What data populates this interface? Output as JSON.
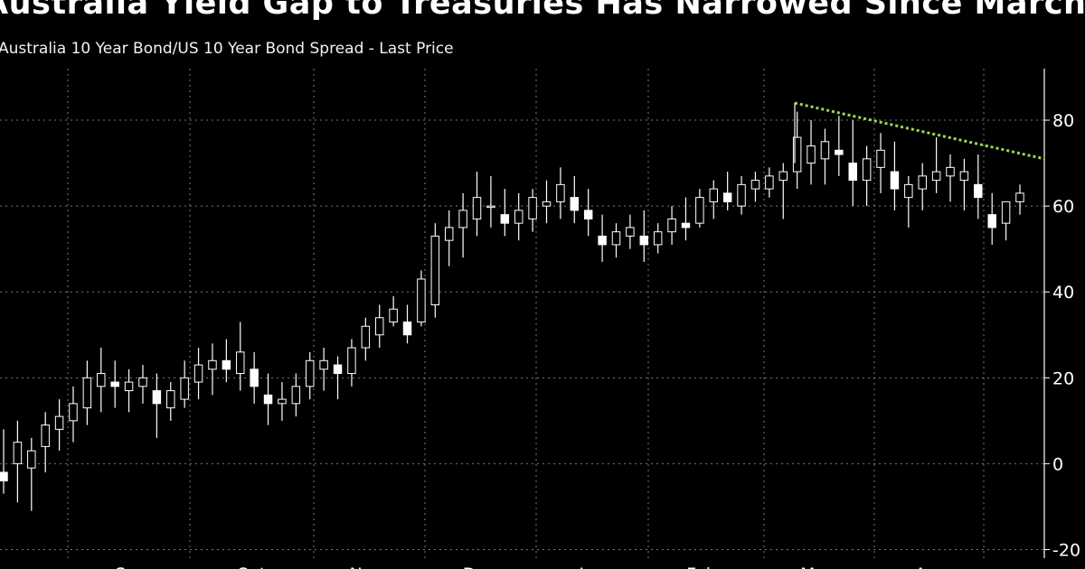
{
  "header": {
    "title": "Australia Yield Gap to Treasuries Has Narrowed Since March",
    "subtitle": "Australia 10 Year Bond/US 10 Year Bond Spread - Last Price"
  },
  "colors": {
    "background": "#000000",
    "candles": "#ffffff",
    "grid": "#7a7a7a",
    "trendline": "#9bd84f"
  },
  "chart_data": {
    "type": "candlestick",
    "title": "Australia Yield Gap to Treasuries Has Narrowed Since March",
    "subtitle": "Australia 10 Year Bond/US 10 Year Bond Spread - Last Price",
    "x_tick_labels": [
      "Aug",
      "Sep",
      "Oct",
      "Nov",
      "Dec",
      "Jan",
      "Feb",
      "Mar",
      "Apr"
    ],
    "y_ticks": [
      -20,
      0,
      20,
      40,
      60,
      80
    ],
    "ylim": [
      -22,
      92
    ],
    "y_axis_position": "right",
    "grid": true,
    "trendline": {
      "style": "dotted",
      "start": {
        "month": "Mar",
        "value": 84
      },
      "end": {
        "month": "end of Apr",
        "value": 71
      }
    },
    "series": [
      {
        "values": [
          [
            -2,
            8,
            -7,
            -4
          ],
          [
            0,
            10,
            -9,
            5
          ],
          [
            -1,
            6,
            -11,
            3
          ],
          [
            4,
            12,
            -2,
            9
          ],
          [
            8,
            15,
            3,
            11
          ],
          [
            10,
            18,
            5,
            14
          ],
          [
            13,
            24,
            9,
            20
          ],
          [
            18,
            27,
            12,
            21
          ],
          [
            19,
            24,
            13,
            18
          ],
          [
            17,
            22,
            12,
            19
          ],
          [
            18,
            23,
            14,
            20
          ],
          [
            17,
            21,
            6,
            14
          ],
          [
            13,
            19,
            10,
            17
          ],
          [
            15,
            24,
            13,
            20
          ],
          [
            19,
            27,
            15,
            23
          ],
          [
            22,
            28,
            16,
            24
          ],
          [
            24,
            29,
            19,
            22
          ],
          [
            21,
            33,
            17,
            26
          ],
          [
            22,
            26,
            14,
            18
          ],
          [
            16,
            21,
            9,
            14
          ],
          [
            14,
            19,
            10,
            15
          ],
          [
            14,
            21,
            11,
            18
          ],
          [
            18,
            26,
            15,
            24
          ],
          [
            22,
            27,
            17,
            24
          ],
          [
            23,
            25,
            15,
            21
          ],
          [
            21,
            29,
            18,
            27
          ],
          [
            27,
            34,
            24,
            32
          ],
          [
            30,
            37,
            27,
            34
          ],
          [
            33,
            39,
            32,
            36
          ],
          [
            33,
            37,
            28,
            30
          ],
          [
            33,
            45,
            32,
            43
          ],
          [
            37,
            56,
            34,
            53
          ],
          [
            52,
            59,
            46,
            55
          ],
          [
            55,
            63,
            48,
            59
          ],
          [
            57,
            68,
            53,
            62
          ],
          [
            60,
            67,
            55,
            60
          ],
          [
            58,
            64,
            53,
            56
          ],
          [
            56,
            63,
            52,
            59
          ],
          [
            57,
            64,
            54,
            62
          ],
          [
            60,
            66,
            56,
            61
          ],
          [
            61,
            69,
            57,
            65
          ],
          [
            62,
            67,
            56,
            59
          ],
          [
            59,
            64,
            53,
            57
          ],
          [
            53,
            58,
            47,
            51
          ],
          [
            51,
            56,
            48,
            54
          ],
          [
            53,
            58,
            50,
            55
          ],
          [
            53,
            59,
            47,
            51
          ],
          [
            51,
            56,
            49,
            54
          ],
          [
            54,
            60,
            51,
            57
          ],
          [
            56,
            62,
            52,
            55
          ],
          [
            56,
            64,
            55,
            62
          ],
          [
            61,
            66,
            57,
            64
          ],
          [
            63,
            68,
            59,
            61
          ],
          [
            60,
            67,
            58,
            65
          ],
          [
            64,
            68,
            61,
            66
          ],
          [
            64,
            69,
            62,
            67
          ],
          [
            66,
            70,
            57,
            68
          ],
          [
            68,
            82,
            64,
            76
          ],
          [
            70,
            80,
            65,
            74
          ],
          [
            71,
            78,
            65,
            75
          ],
          [
            73,
            81,
            67,
            72
          ],
          [
            70,
            80,
            60,
            66
          ],
          [
            66,
            74,
            60,
            71
          ],
          [
            69,
            77,
            63,
            73
          ],
          [
            68,
            75,
            59,
            64
          ],
          [
            62,
            67,
            55,
            65
          ],
          [
            64,
            70,
            59,
            67
          ],
          [
            66,
            76,
            63,
            68
          ],
          [
            67,
            72,
            61,
            69
          ],
          [
            66,
            71,
            59,
            68
          ],
          [
            65,
            72,
            57,
            62
          ],
          [
            58,
            63,
            51,
            55
          ],
          [
            56,
            61,
            52,
            61
          ],
          [
            61,
            65,
            58,
            63
          ]
        ]
      }
    ]
  }
}
